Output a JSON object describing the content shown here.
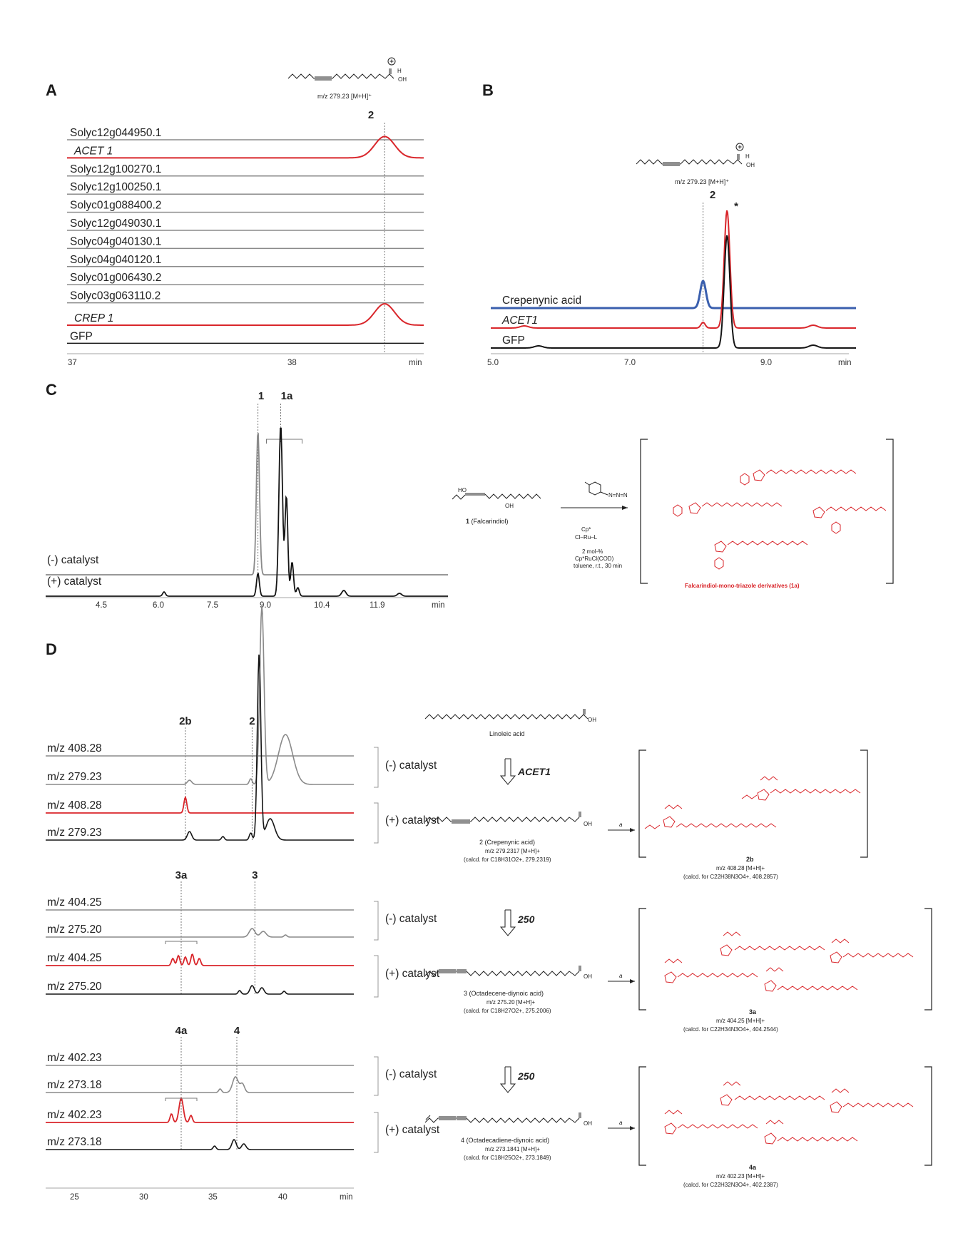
{
  "colors": {
    "red": "#d9262b",
    "gray": "#8a8a8a",
    "black": "#151515",
    "blue": "#3a5fae"
  },
  "panelA": {
    "label": "A",
    "structure_caption": "m/z 279.23 [M+H]⁺",
    "peak_marker": "2",
    "traces": [
      {
        "name": "Solyc12g044950.1",
        "italic": false,
        "color": "gray",
        "peak": 0
      },
      {
        "name": "ACET 1",
        "italic": true,
        "color": "red",
        "peak": 1
      },
      {
        "name": "Solyc12g100270.1",
        "italic": false,
        "color": "gray",
        "peak": 0
      },
      {
        "name": "Solyc12g100250.1",
        "italic": false,
        "color": "gray",
        "peak": 0
      },
      {
        "name": "Solyc01g088400.2",
        "italic": false,
        "color": "gray",
        "peak": 0
      },
      {
        "name": "Solyc12g049030.1",
        "italic": false,
        "color": "gray",
        "peak": 0
      },
      {
        "name": "Solyc04g040130.1",
        "italic": false,
        "color": "gray",
        "peak": 0
      },
      {
        "name": "Solyc04g040120.1",
        "italic": false,
        "color": "gray",
        "peak": 0
      },
      {
        "name": "Solyc01g006430.2",
        "italic": false,
        "color": "gray",
        "peak": 0
      },
      {
        "name": "Solyc03g063110.2",
        "italic": false,
        "color": "gray",
        "peak": 0
      },
      {
        "name": "CREP 1",
        "italic": true,
        "color": "red",
        "peak": 1
      },
      {
        "name": "GFP",
        "italic": false,
        "color": "black",
        "peak": 0
      }
    ],
    "x_ticks": [
      "37",
      "38"
    ],
    "x_unit": "min",
    "peak_time": 38.4
  },
  "panelB": {
    "label": "B",
    "structure_caption": "m/z 279.23 [M+H]⁺",
    "peak_marker": "2",
    "star": "*",
    "traces": [
      {
        "name": "Crepenynic acid",
        "italic": false,
        "color": "blue"
      },
      {
        "name": "ACET1",
        "italic": true,
        "color": "red"
      },
      {
        "name": "GFP",
        "italic": false,
        "color": "black"
      }
    ],
    "x_ticks": [
      "5.0",
      "7.0",
      "9.0"
    ],
    "x_unit": "min",
    "peak_times": {
      "crepenynic": 8.1,
      "star": 8.45
    }
  },
  "panelC": {
    "label": "C",
    "peak_markers": [
      "1",
      "1a"
    ],
    "traces": [
      {
        "name": "(-) catalyst",
        "color": "gray"
      },
      {
        "name": "(+) catalyst",
        "color": "black"
      }
    ],
    "x_ticks": [
      "4.5",
      "6.0",
      "7.5",
      "9.0",
      "10.4",
      "11.9"
    ],
    "x_unit": "min",
    "peak_times": {
      "1": 8.9,
      "1a": 9.5
    },
    "scheme": {
      "substrate": "Falcarindiol",
      "substrate_num": "1",
      "cond1": "2 mol-%",
      "cond2": "Cp*RuCl(COD)",
      "cond3": "toluene, r.t., 30 min",
      "product": "Falcarindiol-mono-triazole derivatives (1a)"
    }
  },
  "panelD": {
    "label": "D",
    "groups": [
      {
        "markers": [
          "2b",
          "2"
        ],
        "traces": [
          {
            "mz": "m/z 408.28",
            "color": "gray"
          },
          {
            "mz": "m/z 279.23",
            "color": "gray"
          },
          {
            "mz": "m/z 408.28",
            "color": "red"
          },
          {
            "mz": "m/z 279.23",
            "color": "black"
          }
        ],
        "neg": "(-) catalyst",
        "pos": "(+) catalyst"
      },
      {
        "markers": [
          "3a",
          "3"
        ],
        "traces": [
          {
            "mz": "m/z 404.25",
            "color": "gray"
          },
          {
            "mz": "m/z 275.20",
            "color": "gray"
          },
          {
            "mz": "m/z 404.25",
            "color": "red"
          },
          {
            "mz": "m/z 275.20",
            "color": "black"
          }
        ],
        "neg": "(-) catalyst",
        "pos": "(+) catalyst"
      },
      {
        "markers": [
          "4a",
          "4"
        ],
        "traces": [
          {
            "mz": "m/z 402.23",
            "color": "gray"
          },
          {
            "mz": "m/z 273.18",
            "color": "gray"
          },
          {
            "mz": "m/z 402.23",
            "color": "red"
          },
          {
            "mz": "m/z 273.18",
            "color": "black"
          }
        ],
        "neg": "(-) catalyst",
        "pos": "(+) catalyst"
      }
    ],
    "x_ticks": [
      "25",
      "30",
      "35",
      "40"
    ],
    "x_unit": "min",
    "scheme": {
      "linoleic": "Linoleic acid",
      "enzyme1": "ACET1",
      "enzyme2": "250",
      "enzyme3": "250",
      "arrow_label": "a",
      "c2_name": "2 (Crepenynic acid)",
      "c2_mz": "m/z 279.2317 [M+H]+",
      "c2_calc": "(calcd. for C18H31O2+, 279.2319)",
      "p2_name": "2b",
      "p2_mz": "m/z 408.28 [M+H]+",
      "p2_calc": "(calcd. for C22H38N3O4+, 408.2857)",
      "c3_name": "3 (Octadecene-diynoic acid)",
      "c3_mz": "m/z 275.20 [M+H]+",
      "c3_calc": "(calcd. for C18H27O2+, 275.2006)",
      "p3_name": "3a",
      "p3_mz": "m/z 404.25 [M+H]+",
      "p3_calc": "(calcd. for C22H34N3O4+, 404.2544)",
      "c4_name": "4 (Octadecadiene-diynoic acid)",
      "c4_mz": "m/z 273.1841 [M+H]+",
      "c4_calc": "(calcd. for C18H25O2+, 273.1849)",
      "p4_name": "4a",
      "p4_mz": "m/z 402.23 [M+H]+",
      "p4_calc": "(calcd. for C22H32N3O4+, 402.2387)"
    }
  }
}
